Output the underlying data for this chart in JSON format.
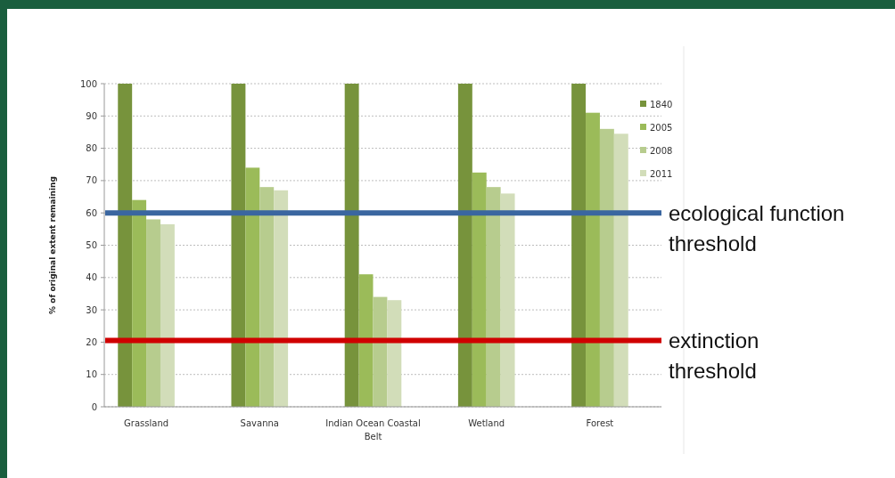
{
  "chart_data": {
    "type": "bar",
    "ylabel": "% of original extent remaining",
    "categories": [
      "Grassland",
      "Savanna",
      "Indian Ocean Coastal Belt",
      "Wetland",
      "Forest"
    ],
    "series": [
      {
        "name": "1840",
        "color": "#77933c",
        "values": [
          100,
          100,
          100,
          100,
          100
        ]
      },
      {
        "name": "2005",
        "color": "#9bbb59",
        "values": [
          64,
          74,
          41,
          72.5,
          91
        ]
      },
      {
        "name": "2008",
        "color": "#b7cc8e",
        "values": [
          58,
          68,
          34,
          68,
          86
        ]
      },
      {
        "name": "2011",
        "color": "#d2ddb9",
        "values": [
          56.5,
          67,
          33,
          66,
          84.5
        ]
      }
    ],
    "ylim": [
      0,
      100
    ],
    "yticks": [
      0,
      10,
      20,
      30,
      40,
      50,
      60,
      70,
      80,
      90,
      100
    ],
    "grid": "y",
    "legend": "right",
    "ref_lines": [
      {
        "axis": "y",
        "value": 60,
        "label": "ecological function threshold",
        "color": "#3a66a0"
      },
      {
        "axis": "y",
        "value": 20.5,
        "label": "extinction threshold",
        "color": "#d00000"
      }
    ]
  }
}
